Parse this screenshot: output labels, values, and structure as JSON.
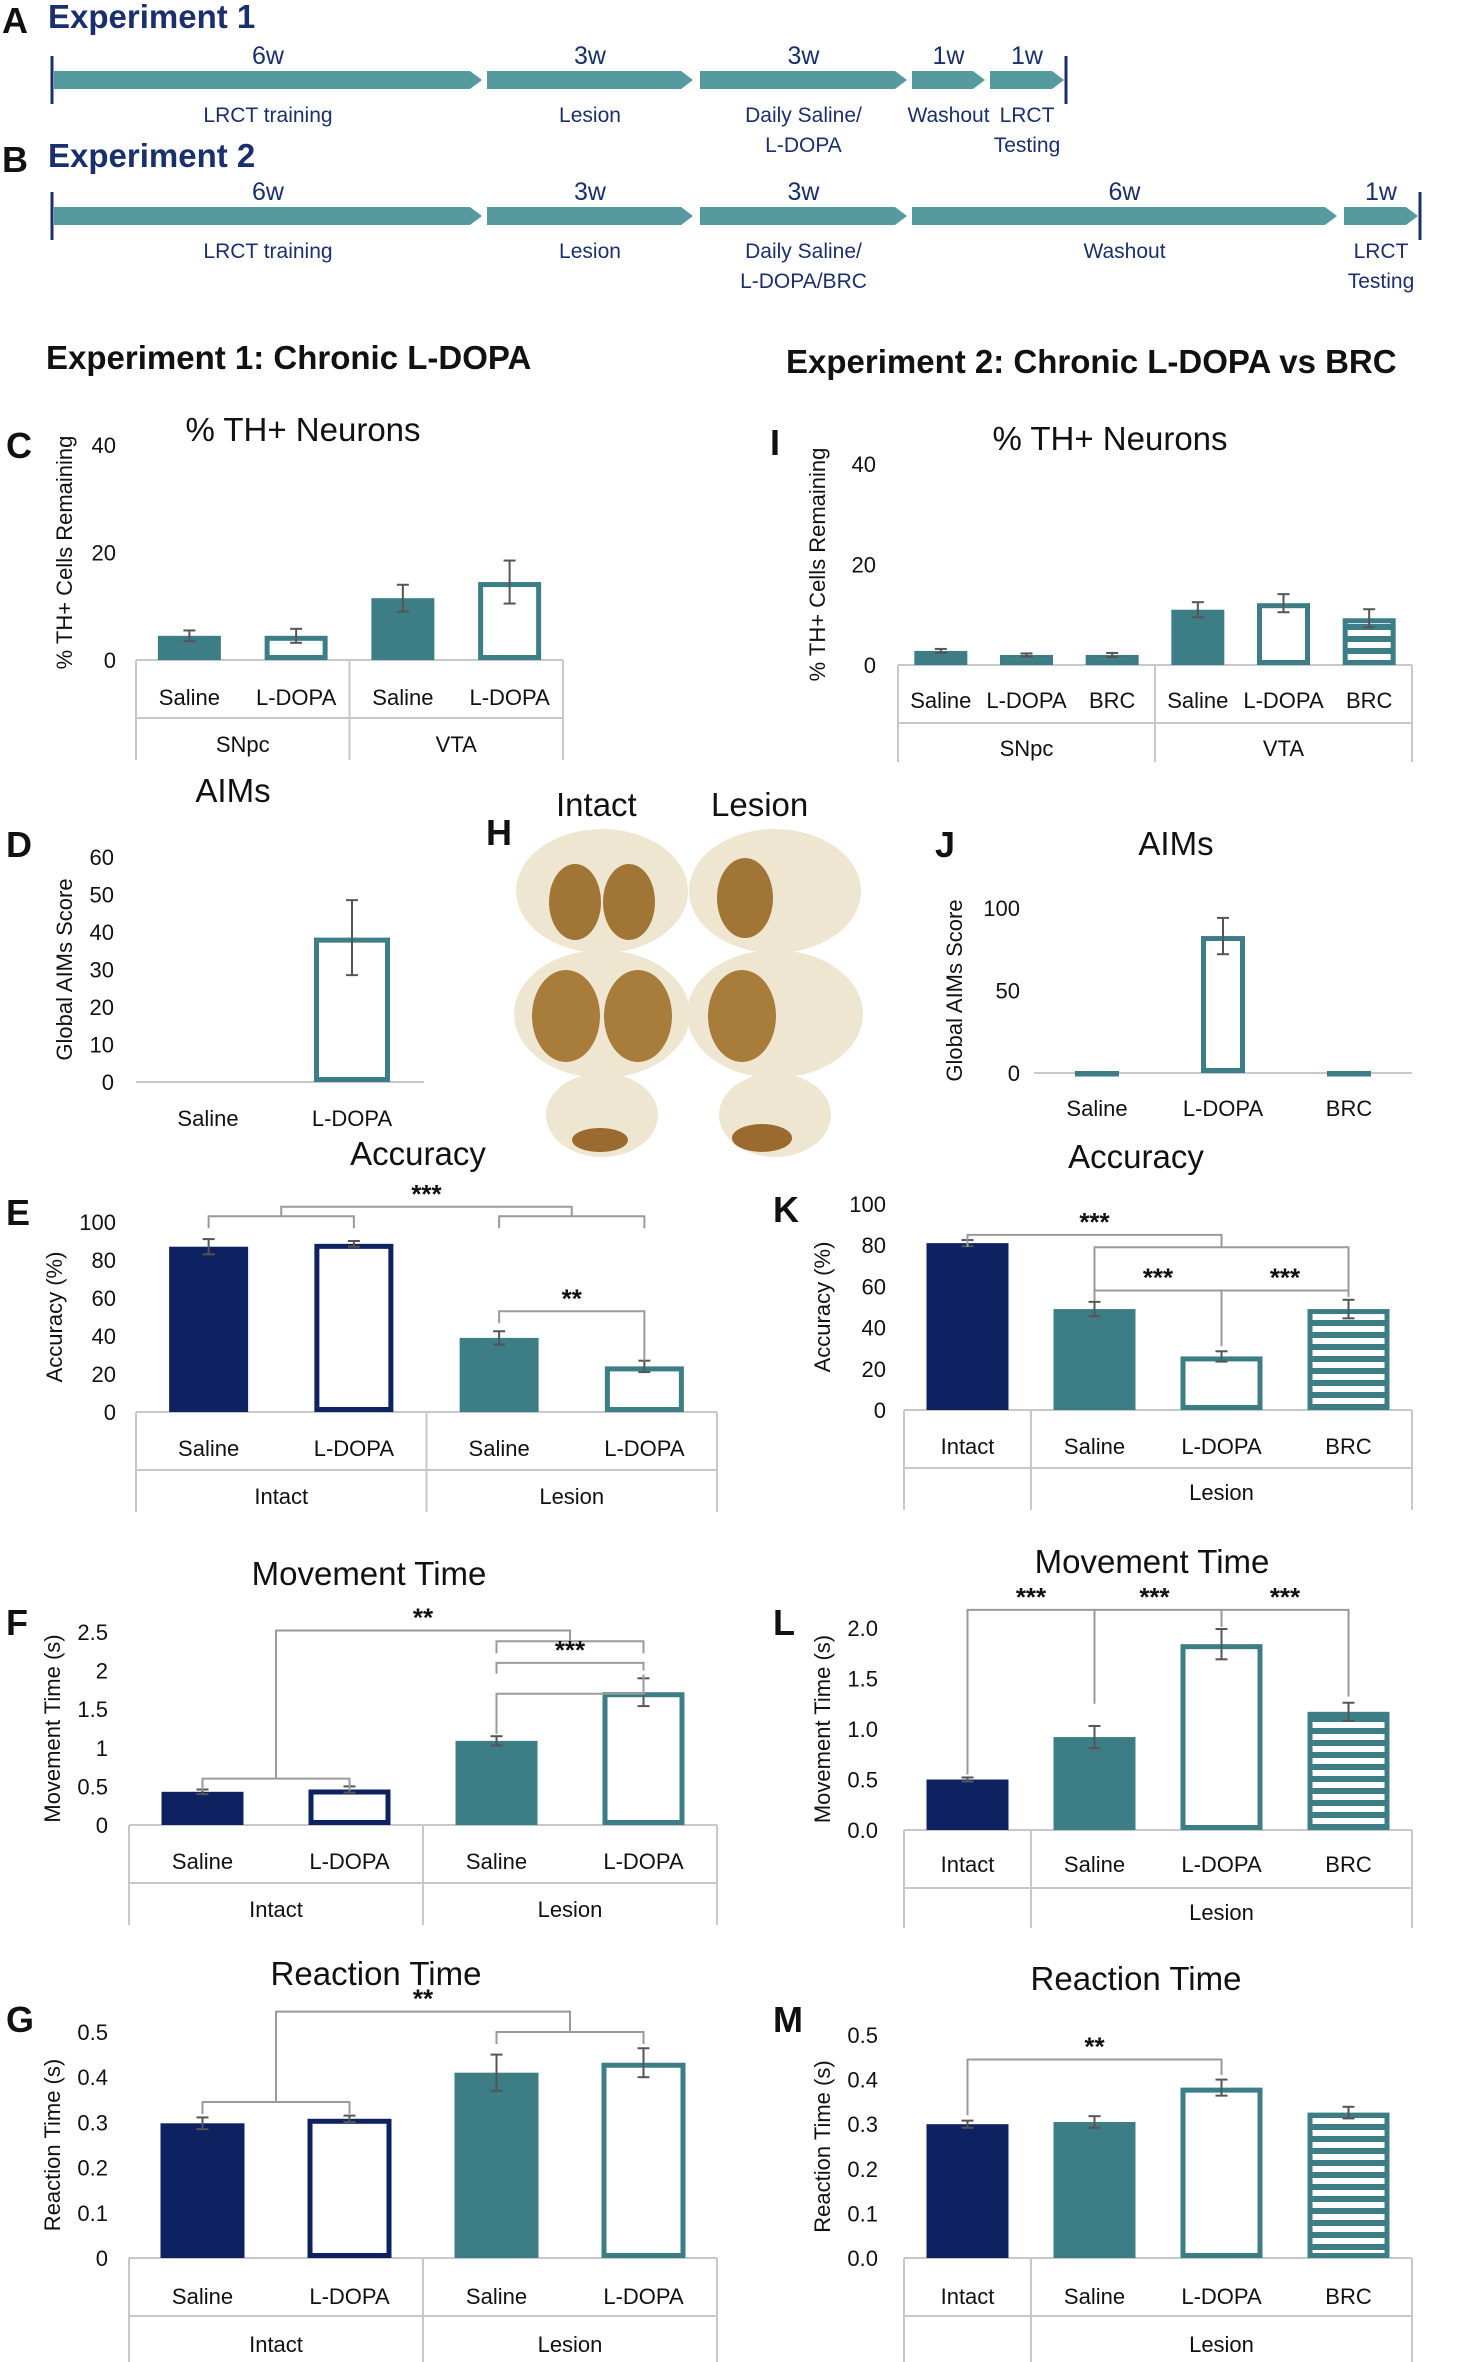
{
  "colors": {
    "navy": "#0e2160",
    "teal": "#3d7d85",
    "arrow": "#56999f",
    "axis": "#c8c8c8",
    "text": "#111111",
    "title_blue": "#1a2f6e"
  },
  "timeline": {
    "exp1": {
      "letter": "A",
      "title": "Experiment 1",
      "segments": [
        {
          "dur": "6w",
          "label": [
            "LRCT training"
          ]
        },
        {
          "dur": "3w",
          "label": [
            "Lesion"
          ]
        },
        {
          "dur": "3w",
          "label": [
            "Daily Saline/",
            "L-DOPA"
          ]
        },
        {
          "dur": "1w",
          "label": [
            "Washout"
          ]
        },
        {
          "dur": "1w",
          "label": [
            "LRCT",
            "Testing"
          ]
        }
      ]
    },
    "exp2": {
      "letter": "B",
      "title": "Experiment 2",
      "segments": [
        {
          "dur": "6w",
          "label": [
            "LRCT training"
          ]
        },
        {
          "dur": "3w",
          "label": [
            "Lesion"
          ]
        },
        {
          "dur": "3w",
          "label": [
            "Daily Saline/",
            "L-DOPA/BRC"
          ]
        },
        {
          "dur": "6w",
          "label": [
            "Washout"
          ]
        },
        {
          "dur": "1w",
          "label": [
            "LRCT",
            "Testing"
          ]
        }
      ]
    }
  },
  "headings": {
    "left": "Experiment 1: Chronic L-DOPA",
    "right": "Experiment 2: Chronic L-DOPA vs BRC"
  },
  "histology": {
    "letter": "H",
    "intact": "Intact",
    "lesion": "Lesion"
  },
  "chart_data": [
    {
      "id": "C",
      "type": "bar",
      "title": "% TH+ Neurons",
      "ylabel": "% TH+ Cells Remaining",
      "ylim": [
        0,
        40
      ],
      "ticks": [
        0,
        20,
        40
      ],
      "categories": [
        "Saline",
        "L-DOPA",
        "Saline",
        "L-DOPA"
      ],
      "groups": [
        {
          "name": "SNpc",
          "n": 2
        },
        {
          "name": "VTA",
          "n": 2
        }
      ],
      "values": [
        4.5,
        4.5,
        11.5,
        14.5
      ],
      "errors": [
        1,
        1.3,
        2.5,
        4
      ],
      "styles": [
        "teal",
        "teal-open",
        "teal",
        "teal-open"
      ],
      "brackets": []
    },
    {
      "id": "I",
      "type": "bar",
      "title": "% TH+ Neurons",
      "ylabel": "% TH+ Cells Remaining",
      "ylim": [
        0,
        40
      ],
      "ticks": [
        0,
        20,
        40
      ],
      "categories": [
        "Saline",
        "L-DOPA",
        "BRC",
        "Saline",
        "L-DOPA",
        "BRC"
      ],
      "groups": [
        {
          "name": "SNpc",
          "n": 3
        },
        {
          "name": "VTA",
          "n": 3
        }
      ],
      "values": [
        2.8,
        2,
        2,
        11,
        12.3,
        9.3
      ],
      "errors": [
        0.4,
        0.3,
        0.4,
        1.5,
        1.8,
        1.8
      ],
      "styles": [
        "teal",
        "teal-open",
        "teal-stripe",
        "teal",
        "teal-open",
        "teal-stripe"
      ],
      "brackets": []
    },
    {
      "id": "D",
      "type": "bar",
      "title": "AIMs",
      "ylabel": "Global AIMs Score",
      "ylim": [
        0,
        60
      ],
      "ticks": [
        0,
        10,
        20,
        30,
        40,
        50,
        60
      ],
      "categories": [
        "Saline",
        "L-DOPA"
      ],
      "groups": [],
      "values": [
        0,
        38.5
      ],
      "errors": [
        0,
        10
      ],
      "styles": [
        "none",
        "teal-open"
      ],
      "brackets": []
    },
    {
      "id": "J",
      "type": "bar",
      "title": "AIMs",
      "ylabel": "Global AIMs Score",
      "ylim": [
        0,
        100
      ],
      "ticks": [
        0,
        50,
        100
      ],
      "categories": [
        "Saline",
        "L-DOPA",
        "BRC"
      ],
      "groups": [],
      "values": [
        0.5,
        83,
        0.5
      ],
      "errors": [
        0,
        11,
        0
      ],
      "styles": [
        "teal",
        "teal-open",
        "teal-stripe"
      ],
      "brackets": []
    },
    {
      "id": "E",
      "type": "bar",
      "title": "Accuracy",
      "ylabel": "Accuracy (%)",
      "ylim": [
        0,
        100
      ],
      "ticks": [
        0,
        20,
        40,
        60,
        80,
        100
      ],
      "categories": [
        "Saline",
        "L-DOPA",
        "Saline",
        "L-DOPA"
      ],
      "groups": [
        {
          "name": "Intact",
          "n": 2
        },
        {
          "name": "Lesion",
          "n": 2
        }
      ],
      "values": [
        87,
        88.5,
        39,
        24
      ],
      "errors": [
        4,
        1.5,
        3.5,
        3
      ],
      "styles": [
        "navy",
        "navy-open",
        "teal",
        "teal-open"
      ],
      "brackets": [
        {
          "kind": "pair",
          "a": 0,
          "b": 1,
          "y": 103
        },
        {
          "kind": "pair",
          "a": 2,
          "b": 3,
          "y": 103
        },
        {
          "kind": "join",
          "a": 0.5,
          "b": 2.5,
          "y": 108,
          "from": 103,
          "star": "***"
        },
        {
          "kind": "pair",
          "a": 2,
          "b": 3,
          "y": 53,
          "star": "**",
          "right_to": 27
        }
      ]
    },
    {
      "id": "K",
      "type": "bar",
      "title": "Accuracy",
      "ylabel": "Accuracy (%)",
      "ylim": [
        0,
        100
      ],
      "ticks": [
        0,
        20,
        40,
        60,
        80,
        100
      ],
      "categories": [
        "Intact",
        "Saline",
        "L-DOPA",
        "BRC"
      ],
      "groups": [
        {
          "name": "",
          "n": 1
        },
        {
          "name": "Lesion",
          "n": 3
        }
      ],
      "values": [
        81,
        49,
        26,
        49
      ],
      "errors": [
        1.5,
        3.5,
        2.5,
        4.5
      ],
      "styles": [
        "navy",
        "teal",
        "teal-open",
        "teal-stripe"
      ],
      "brackets": [
        {
          "kind": "pair",
          "a": 0,
          "b": 2,
          "y": 85,
          "star": "***"
        },
        {
          "kind": "pair",
          "a": 1,
          "b": 3,
          "y": 79,
          "lefty": 55,
          "righty": 55
        },
        {
          "kind": "pair",
          "a": 1,
          "b": 2,
          "y": 58,
          "star": "***",
          "lefty": 53,
          "righty": 31
        },
        {
          "kind": "pair",
          "a": 2,
          "b": 3,
          "y": 58,
          "star": "***",
          "lefty": 31,
          "righty": 55
        }
      ]
    },
    {
      "id": "F",
      "type": "bar",
      "title": "Movement Time",
      "ylabel": "Movement Time (s)",
      "ylim": [
        0,
        2.5
      ],
      "ticks": [
        0,
        0.5,
        1,
        1.5,
        2,
        2.5
      ],
      "ticklabels": [
        "0",
        "0.5",
        "1",
        "1.5",
        "2",
        "2.5"
      ],
      "categories": [
        "Saline",
        "L-DOPA",
        "Saline",
        "L-DOPA"
      ],
      "groups": [
        {
          "name": "Intact",
          "n": 2
        },
        {
          "name": "Lesion",
          "n": 2
        }
      ],
      "values": [
        0.43,
        0.46,
        1.09,
        1.72
      ],
      "errors": [
        0.03,
        0.04,
        0.06,
        0.18
      ],
      "styles": [
        "navy",
        "navy-open",
        "teal",
        "teal-open"
      ],
      "brackets": [
        {
          "kind": "pair",
          "a": 0,
          "b": 1,
          "y": 0.6
        },
        {
          "kind": "pair",
          "a": 2,
          "b": 3,
          "y": 2.38
        },
        {
          "kind": "join",
          "a": 0.5,
          "b": 2.5,
          "y": 2.52,
          "from_left": 0.6,
          "from": 2.38,
          "star": "**"
        },
        {
          "kind": "pair",
          "a": 2,
          "b": 3,
          "y": 2.1,
          "star": "***",
          "lefty": 1.96,
          "righty": 2.0
        },
        {
          "kind": "pair",
          "a": 2,
          "b": 3,
          "y": 1.7,
          "lefty": 1.18,
          "righty": 1.95
        }
      ]
    },
    {
      "id": "L",
      "type": "bar",
      "title": "Movement Time",
      "ylabel": "Movement Time (s)",
      "ylim": [
        0,
        2.0
      ],
      "ticks": [
        0,
        0.5,
        1,
        1.5,
        2
      ],
      "ticklabels": [
        "0.0",
        "0.5",
        "1.0",
        "1.5",
        "2.0"
      ],
      "categories": [
        "Intact",
        "Saline",
        "L-DOPA",
        "BRC"
      ],
      "groups": [
        {
          "name": "",
          "n": 1
        },
        {
          "name": "Lesion",
          "n": 3
        }
      ],
      "values": [
        0.5,
        0.92,
        1.84,
        1.17
      ],
      "errors": [
        0.02,
        0.11,
        0.15,
        0.09
      ],
      "styles": [
        "navy",
        "teal",
        "teal-open",
        "teal-stripe"
      ],
      "brackets": [
        {
          "kind": "pair",
          "a": 0,
          "b": 2,
          "y": 2.18,
          "star": "***",
          "lefty": 0.55,
          "righty": 2.01,
          "midstar": 0.6
        },
        {
          "kind": "tick",
          "a": 1,
          "y": 2.18,
          "to": 1.25,
          "star": "***"
        },
        {
          "kind": "pair",
          "a": 2,
          "b": 3,
          "y": 2.18,
          "star": "***",
          "lefty": 2.01,
          "righty": 1.32
        }
      ]
    },
    {
      "id": "G",
      "type": "bar",
      "title": "Reaction Time",
      "ylabel": "Reaction Time (s)",
      "ylim": [
        0,
        0.5
      ],
      "ticks": [
        0,
        0.1,
        0.2,
        0.3,
        0.4,
        0.5
      ],
      "ticklabels": [
        "0",
        "0.1",
        "0.2",
        "0.3",
        "0.4",
        "0.5"
      ],
      "categories": [
        "Saline",
        "L-DOPA",
        "Saline",
        "L-DOPA"
      ],
      "groups": [
        {
          "name": "Intact",
          "n": 2
        },
        {
          "name": "Lesion",
          "n": 2
        }
      ],
      "values": [
        0.298,
        0.308,
        0.41,
        0.432
      ],
      "errors": [
        0.013,
        0.007,
        0.04,
        0.032
      ],
      "styles": [
        "navy",
        "navy-open",
        "teal",
        "teal-open"
      ],
      "brackets": [
        {
          "kind": "pair",
          "a": 0,
          "b": 1,
          "y": 0.345
        },
        {
          "kind": "pair",
          "a": 2,
          "b": 3,
          "y": 0.5
        },
        {
          "kind": "join",
          "a": 0.5,
          "b": 2.5,
          "y": 0.545,
          "from_left": 0.345,
          "from": 0.5,
          "star": "**"
        }
      ]
    },
    {
      "id": "M",
      "type": "bar",
      "title": "Reaction Time",
      "ylabel": "Reaction Time (s)",
      "ylim": [
        0,
        0.5
      ],
      "ticks": [
        0,
        0.1,
        0.2,
        0.3,
        0.4,
        0.5
      ],
      "ticklabels": [
        "0.0",
        "0.1",
        "0.2",
        "0.3",
        "0.4",
        "0.5"
      ],
      "categories": [
        "Intact",
        "Saline",
        "L-DOPA",
        "BRC"
      ],
      "groups": [
        {
          "name": "",
          "n": 1
        },
        {
          "name": "Lesion",
          "n": 3
        }
      ],
      "values": [
        0.3,
        0.305,
        0.382,
        0.326
      ],
      "errors": [
        0.008,
        0.013,
        0.018,
        0.013
      ],
      "styles": [
        "navy",
        "teal",
        "teal-open",
        "teal-stripe"
      ],
      "brackets": [
        {
          "kind": "pair",
          "a": 0,
          "b": 2,
          "y": 0.445,
          "star": "**",
          "lefty": 0.32,
          "righty": 0.41
        }
      ]
    }
  ]
}
